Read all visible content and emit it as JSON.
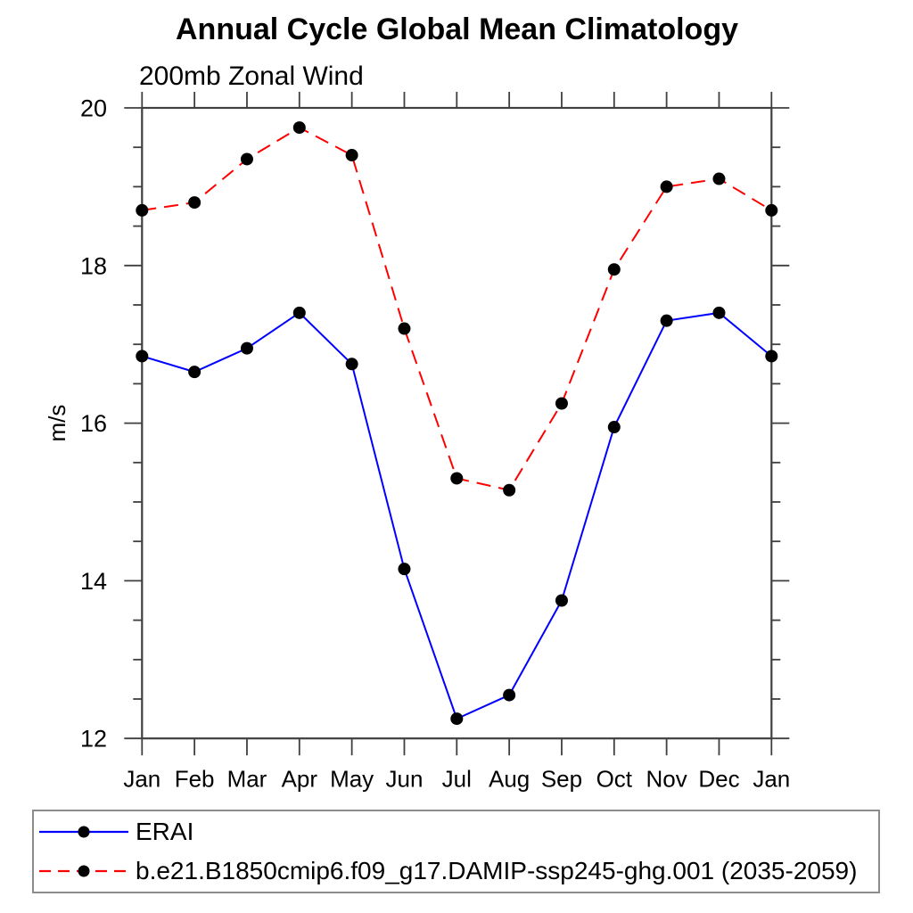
{
  "chart_data": {
    "type": "line",
    "title": "Annual Cycle Global Mean Climatology",
    "subtitle": "200mb Zonal Wind",
    "categories": [
      "Jan",
      "Feb",
      "Mar",
      "Apr",
      "May",
      "Jun",
      "Jul",
      "Aug",
      "Sep",
      "Oct",
      "Nov",
      "Dec",
      "Jan"
    ],
    "xlabel": "",
    "ylabel": "m/s",
    "ylim": [
      12,
      20
    ],
    "yticks_major": [
      12,
      14,
      16,
      18,
      20
    ],
    "ytick_minor_step": 0.5,
    "grid": false,
    "legend_position": "bottom-box",
    "series": [
      {
        "name": "ERAI",
        "color": "#0000ff",
        "line_style": "solid",
        "marker": "filled-circle",
        "marker_color": "#000000",
        "values": [
          16.85,
          16.65,
          16.95,
          17.4,
          16.75,
          14.15,
          12.25,
          12.55,
          13.75,
          15.95,
          17.3,
          17.4,
          16.85
        ]
      },
      {
        "name": "b.e21.B1850cmip6.f09_g17.DAMIP-ssp245-ghg.001 (2035-2059)",
        "color": "#ff0000",
        "line_style": "dashed",
        "marker": "filled-circle",
        "marker_color": "#000000",
        "values": [
          18.7,
          18.8,
          19.35,
          19.75,
          19.4,
          17.2,
          15.3,
          15.15,
          16.25,
          17.95,
          19.0,
          19.1,
          18.7
        ]
      }
    ]
  },
  "style": {
    "axis_color": "#3f3f3f",
    "text_color": "#000000",
    "legend_border_color": "#8c8c8c",
    "background": "#ffffff"
  }
}
